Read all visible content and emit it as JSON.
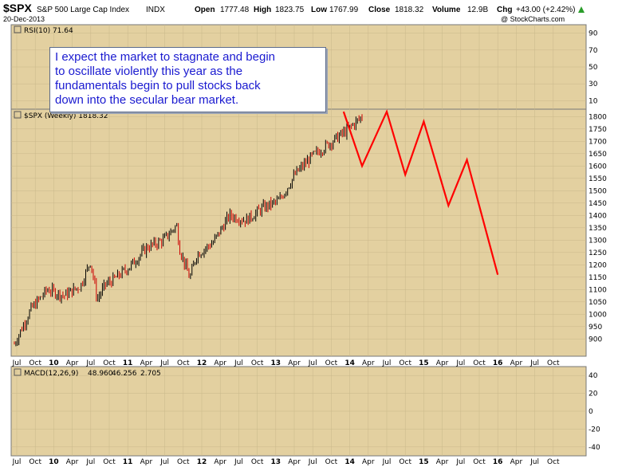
{
  "header": {
    "symbol": "$SPX",
    "name": "S&P 500 Large Cap Index",
    "exchange": "INDX",
    "date": "20-Dec-2013",
    "open_label": "Open",
    "open": "1777.48",
    "high_label": "High",
    "high": "1823.75",
    "low_label": "Low",
    "low": "1767.99",
    "close_label": "Close",
    "close": "1818.32",
    "volume_label": "Volume",
    "volume": "12.9B",
    "chg_label": "Chg",
    "chg": "+43.00 (+2.42%)",
    "watermark": "@ StockCharts.com"
  },
  "callout": {
    "text": "I expect the market to stagnate and begin\nto oscillate violently this year as the\nfundamentals begin to pull stocks back\ndown into the secular bear market."
  },
  "colors": {
    "panel_bg": "#e3d0a0",
    "up": "#000000",
    "down": "#cc0000",
    "projection": "#ff0000",
    "callout_text": "#1a1ad0",
    "macd_signal": "#ff0000",
    "macd_hist": "#3399cc"
  },
  "chart_data": [
    {
      "type": "line",
      "panel": "rsi",
      "title": "RSI(10) 71.64",
      "y_ticks": [
        90,
        70,
        50,
        30,
        10
      ]
    },
    {
      "type": "candlestick",
      "panel": "price",
      "title": "$SPX (Weekly) 1818.32",
      "ylim": [
        830,
        1830
      ],
      "y_ticks": [
        900,
        950,
        1000,
        1050,
        1100,
        1150,
        1200,
        1250,
        1300,
        1350,
        1400,
        1450,
        1500,
        1550,
        1600,
        1650,
        1700,
        1750,
        1800
      ],
      "x_ticks": [
        "Jul",
        "Oct",
        "10",
        "Apr",
        "Jul",
        "Oct",
        "11",
        "Apr",
        "Jul",
        "Oct",
        "12",
        "Apr",
        "Jul",
        "Oct",
        "13",
        "Apr",
        "Jul",
        "Oct",
        "14",
        "Apr",
        "Jul",
        "Oct",
        "15",
        "Apr",
        "Jul",
        "Oct",
        "16",
        "Apr",
        "Jul",
        "Oct"
      ],
      "year_ticks": [
        "10",
        "11",
        "12",
        "13",
        "14",
        "15",
        "16"
      ],
      "price_path": [
        [
          0,
          880
        ],
        [
          1,
          1020
        ],
        [
          2,
          1100
        ],
        [
          3,
          1075
        ],
        [
          4,
          1115
        ],
        [
          4.6,
          1215
        ],
        [
          5,
          1060
        ],
        [
          5.5,
          1120
        ],
        [
          6,
          1140
        ],
        [
          7,
          1195
        ],
        [
          8,
          1270
        ],
        [
          9,
          1300
        ],
        [
          9.8,
          1360
        ],
        [
          10,
          1260
        ],
        [
          10.6,
          1145
        ],
        [
          11,
          1240
        ],
        [
          12,
          1290
        ],
        [
          13,
          1400
        ],
        [
          14,
          1380
        ],
        [
          15,
          1430
        ],
        [
          16,
          1460
        ],
        [
          17,
          1570
        ],
        [
          18,
          1640
        ],
        [
          19,
          1690
        ],
        [
          20,
          1740
        ],
        [
          21,
          1800
        ]
      ],
      "projection": [
        {
          "x": "Dec 2013",
          "y": 1820
        },
        {
          "x": "Mar 2014",
          "y": 1600
        },
        {
          "x": "Jul 2014",
          "y": 1820
        },
        {
          "x": "Oct 2014",
          "y": 1565
        },
        {
          "x": "Jan 2015",
          "y": 1780
        },
        {
          "x": "May 2015",
          "y": 1440
        },
        {
          "x": "Aug 2015",
          "y": 1625
        },
        {
          "x": "Jan 2016",
          "y": 1160
        }
      ]
    },
    {
      "type": "line",
      "panel": "macd",
      "title": "MACD(12,26,9)",
      "macd": "48.960",
      "signal": "46.256",
      "histogram": "2.705",
      "y_ticks": [
        40,
        20,
        0,
        -20,
        -40
      ]
    }
  ]
}
